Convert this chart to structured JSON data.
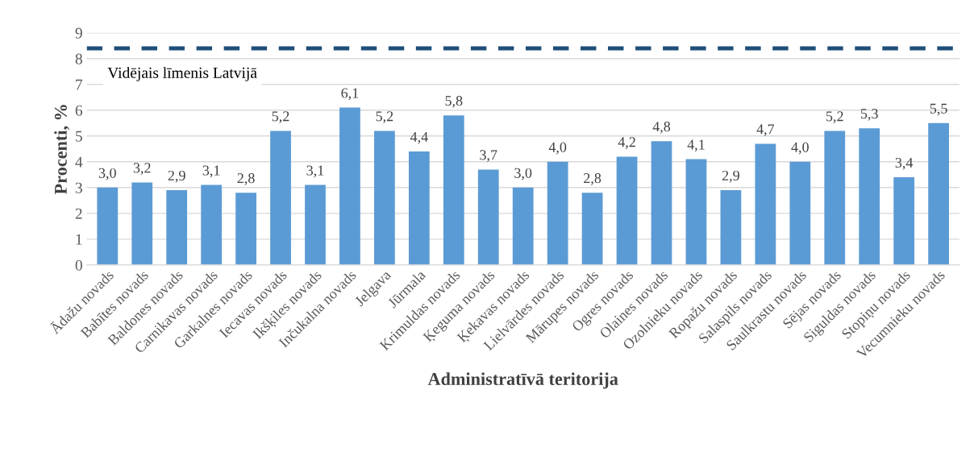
{
  "chart_data": {
    "type": "bar",
    "xlabel": "Administratīvā teritorija",
    "ylabel": "Procenti, %",
    "categories": [
      "Ādažu novads",
      "Babītes novads",
      "Baldones novads",
      "Carnikavas novads",
      "Garkalnes novads",
      "Iecavas novads",
      "Ikšķiles novads",
      "Inčukalna novads",
      "Jelgava",
      "Jūrmala",
      "Krimuldas novads",
      "Ķeguma novads",
      "Ķekavas novads",
      "Lielvārdes novads",
      "Mārupes novads",
      "Ogres novads",
      "Olaines novads",
      "Ozolnieku novads",
      "Ropažu novads",
      "Salaspils novads",
      "Saulkrastu novads",
      "Sējas novads",
      "Siguldas novads",
      "Stopiņu novads",
      "Vecumnieku novads"
    ],
    "values": [
      3.0,
      3.2,
      2.9,
      3.1,
      2.8,
      5.2,
      3.1,
      6.1,
      5.2,
      4.4,
      5.8,
      3.7,
      3.0,
      4.0,
      2.8,
      4.2,
      4.8,
      4.1,
      2.9,
      4.7,
      4.0,
      5.2,
      5.3,
      3.4,
      5.5
    ],
    "value_labels": [
      "3,0",
      "3,2",
      "2,9",
      "3,1",
      "2,8",
      "5,2",
      "3,1",
      "6,1",
      "5,2",
      "4,4",
      "5,8",
      "3,7",
      "3,0",
      "4,0",
      "2,8",
      "4,2",
      "4,8",
      "4,1",
      "2,9",
      "4,7",
      "4,0",
      "5,2",
      "5,3",
      "3,4",
      "5,5"
    ],
    "color": "#5b9bd5",
    "ylim": [
      0,
      9
    ],
    "yticks": [
      0,
      1,
      2,
      3,
      4,
      5,
      6,
      7,
      8,
      9
    ],
    "grid": "y",
    "ref_lines": [
      {
        "axis": "y",
        "value": 8.4,
        "label": "Vidējais līmenis Latvijā",
        "color": "#1f4e79",
        "line_style": "dashed"
      }
    ]
  }
}
